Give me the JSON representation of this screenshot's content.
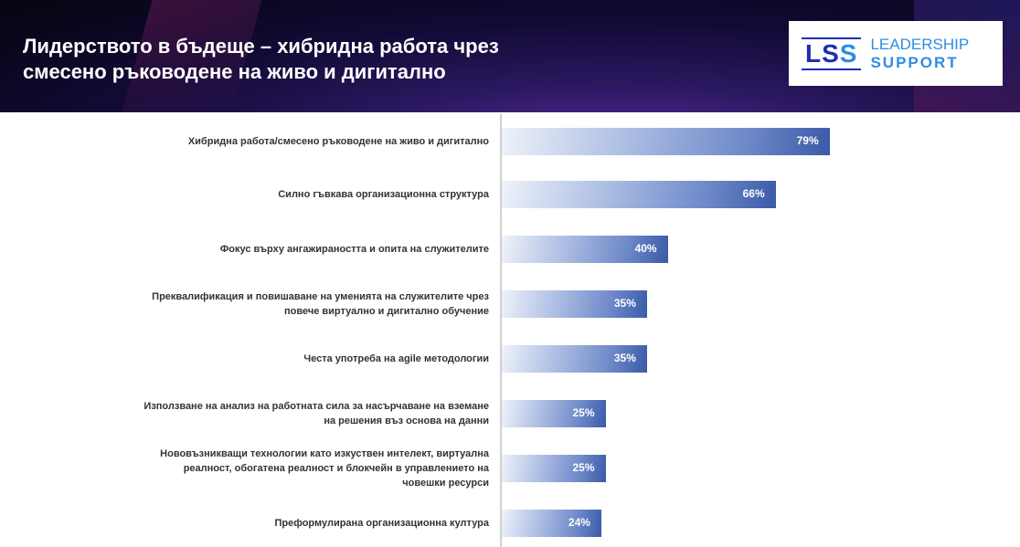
{
  "header": {
    "title": "Лидерството в бъдеще – хибридна работа чрез смесено ръководене на живо и дигитално"
  },
  "logo": {
    "mark": "LS",
    "mark2": "S",
    "line1": "LEADERSHIP",
    "line2": "SUPPORT"
  },
  "chart_data": {
    "type": "bar",
    "orientation": "horizontal",
    "title": "Лидерството в бъдеще – хибридна работа чрез смесено ръководене на живо и дигитално",
    "categories": [
      "Хибридна работа/смесено ръководене на живо и дигитално",
      "Силно гъвкава организационна структура",
      "Фокус върху ангажираността и опита на служителите",
      "Преквалификация и повишаване на уменията на служителите чрез повече виртуално и дигитално обучение",
      "Честа употреба на agile методологии",
      "Използване на анализ на работната сила за насърчаване на вземане на решения въз основа на данни",
      "Нововъзникващи технологии като изкуствен интелект, виртуална реалност, обогатена реалност и блокчейн в управлението на човешки ресурси",
      "Преформулирана организационна култура"
    ],
    "values": [
      79,
      66,
      40,
      35,
      35,
      25,
      25,
      24
    ],
    "labels": [
      "79%",
      "66%",
      "40%",
      "35%",
      "35%",
      "25%",
      "25%",
      "24%"
    ],
    "xlim": [
      0,
      100
    ],
    "unit": "%"
  }
}
